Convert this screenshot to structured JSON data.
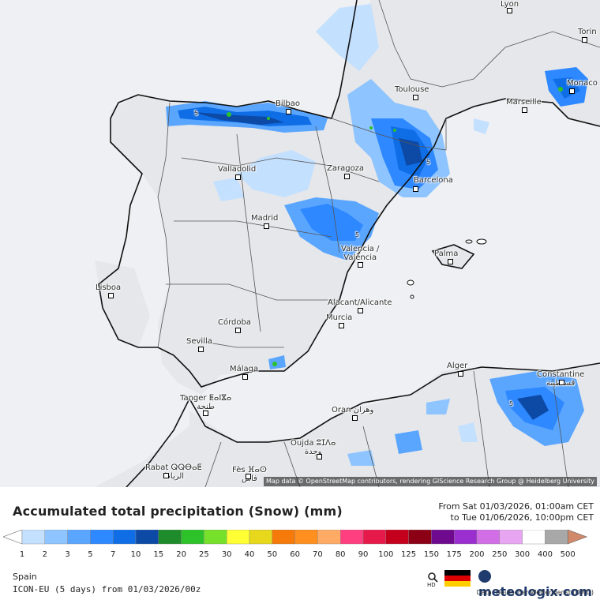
{
  "map": {
    "attribution": "Map data © OpenStreetMap contributors, rendering GIScience Research Group @ Heidelberg University",
    "cities": [
      {
        "label": "Lyon"
      },
      {
        "label": "Torin"
      },
      {
        "label": "Monaco"
      },
      {
        "label": "Marseille"
      },
      {
        "label": "Toulouse"
      },
      {
        "label": "Bilbao"
      },
      {
        "label": "Valladolid"
      },
      {
        "label": "Zaragoza"
      },
      {
        "label": "Barcelona"
      },
      {
        "label": "Madrid"
      },
      {
        "label": "Valencia /\nValència"
      },
      {
        "label": "Palma"
      },
      {
        "label": "Lisboa"
      },
      {
        "label": "Alacant/Alicante"
      },
      {
        "label": "Murcia"
      },
      {
        "label": "Córdoba"
      },
      {
        "label": "Sevilla"
      },
      {
        "label": "Málaga"
      },
      {
        "label": "Alger"
      },
      {
        "label": "Constantine\nقسنطينة"
      },
      {
        "label": "Tanger ⵟⴰⵏⴵⴰ\nطنجة"
      },
      {
        "label": "Oran وهران"
      },
      {
        "label": "Oujda ⵓⵊⴷⴰ\nوجدة"
      },
      {
        "label": "Rabat ⵕⵕⴱⴰⵟ\nالرباط"
      },
      {
        "label": "Fès ⴼⴰⵙ\nفاس"
      }
    ],
    "contour_label": "5"
  },
  "header": {
    "title": "Accumulated total precipitation (Snow) (mm)",
    "from": "From Sat 01/03/2026, 01:00am CET",
    "to": "to Tue 01/06/2026, 10:00pm CET"
  },
  "legend": {
    "labels": [
      "1",
      "2",
      "3",
      "5",
      "7",
      "10",
      "15",
      "20",
      "25",
      "30",
      "40",
      "50",
      "60",
      "70",
      "80",
      "90",
      "100",
      "125",
      "150",
      "175",
      "200",
      "250",
      "300",
      "400",
      "500"
    ],
    "colors": [
      "#c4e0ff",
      "#8ec4ff",
      "#5aa6ff",
      "#2e88ff",
      "#0f6ee6",
      "#0c4aa6",
      "#1e8c2a",
      "#2ec22a",
      "#76e02a",
      "#ffff33",
      "#e8d81c",
      "#f57a0a",
      "#ff8f1f",
      "#ffab66",
      "#ff3f7f",
      "#e6194b",
      "#c4001c",
      "#8c0016",
      "#6f0a8f",
      "#9a2ecf",
      "#d16ee6",
      "#e8a6f2",
      "#ffffff",
      "#a8a8a8",
      "#d0896a"
    ],
    "unit_hint": ""
  },
  "footer": {
    "region": "Spain",
    "model": "ICON-EU (5 days) from 01/03/2026/00z",
    "source": "Data: Deutscher Wetterdienst (DWD)",
    "brand": "meteologix.com",
    "hd_label": "HD"
  }
}
